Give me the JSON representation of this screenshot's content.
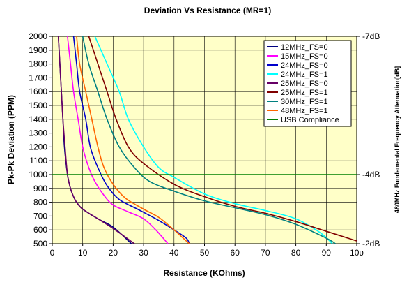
{
  "chart_data": {
    "type": "line",
    "title": "Deviation Vs Resistance (MR=1)",
    "xlabel": "Resistance (KOhms)",
    "ylabel": "Pk-Pk Deviation (PPM)",
    "y2label": "480MHz   Fundamental Frequency Attenuation[dB]",
    "xlim": [
      0,
      100
    ],
    "ylim": [
      500,
      2000
    ],
    "x_ticks": [
      "0",
      "10",
      "20",
      "30",
      "40",
      "50",
      "60",
      "70",
      "80",
      "90",
      "10υ"
    ],
    "y_ticks": [
      "500",
      "600",
      "700",
      "800",
      "900",
      "1000",
      "1100",
      "1200",
      "1300",
      "1400",
      "1500",
      "1600",
      "1700",
      "1800",
      "1900",
      "2000"
    ],
    "y2_ticks": [
      {
        "label": "-7dB",
        "y": 2000
      },
      {
        "label": "-4dB",
        "y": 1000
      },
      {
        "label": "-2dB",
        "y": 500
      }
    ],
    "grid": true,
    "legend_position": "top-right",
    "plot_background": "#FFFFC8",
    "series": [
      {
        "name": "12MHz_FS=0",
        "color": "#000080",
        "points": [
          [
            2,
            2000
          ],
          [
            2.5,
            1800
          ],
          [
            3,
            1600
          ],
          [
            3.5,
            1400
          ],
          [
            4,
            1200
          ],
          [
            5,
            1000
          ],
          [
            6,
            900
          ],
          [
            7,
            840
          ],
          [
            8,
            800
          ],
          [
            10,
            750
          ],
          [
            15,
            680
          ],
          [
            20,
            620
          ],
          [
            26,
            500
          ]
        ]
      },
      {
        "name": "15MHz_FS=0",
        "color": "#FF00FF",
        "points": [
          [
            5,
            2000
          ],
          [
            6,
            1800
          ],
          [
            7,
            1600
          ],
          [
            8.5,
            1400
          ],
          [
            10,
            1200
          ],
          [
            12,
            1050
          ],
          [
            14,
            950
          ],
          [
            17,
            850
          ],
          [
            20,
            780
          ],
          [
            25,
            730
          ],
          [
            30,
            680
          ],
          [
            34,
            600
          ],
          [
            38,
            500
          ]
        ]
      },
      {
        "name": "24MHz_FS=0",
        "color": "#0000CC",
        "points": [
          [
            7,
            2000
          ],
          [
            8,
            1800
          ],
          [
            9,
            1600
          ],
          [
            11,
            1400
          ],
          [
            12.5,
            1200
          ],
          [
            15,
            1050
          ],
          [
            18,
            920
          ],
          [
            22,
            820
          ],
          [
            28,
            750
          ],
          [
            34,
            680
          ],
          [
            40,
            600
          ],
          [
            44,
            540
          ],
          [
            45,
            500
          ]
        ]
      },
      {
        "name": "24MHz_FS=1",
        "color": "#00FFFF",
        "points": [
          [
            14,
            2000
          ],
          [
            18,
            1800
          ],
          [
            22,
            1600
          ],
          [
            25,
            1400
          ],
          [
            30,
            1200
          ],
          [
            35,
            1050
          ],
          [
            40,
            980
          ],
          [
            50,
            860
          ],
          [
            60,
            790
          ],
          [
            70,
            740
          ],
          [
            80,
            680
          ],
          [
            88,
            580
          ],
          [
            92,
            500
          ]
        ]
      },
      {
        "name": "25MHz_FS=0",
        "color": "#660066",
        "points": [
          [
            2,
            2000
          ],
          [
            2.5,
            1800
          ],
          [
            3,
            1600
          ],
          [
            3.5,
            1400
          ],
          [
            4.2,
            1200
          ],
          [
            5,
            1000
          ],
          [
            6,
            900
          ],
          [
            7,
            840
          ],
          [
            8,
            800
          ],
          [
            10,
            750
          ],
          [
            15,
            680
          ],
          [
            20,
            610
          ],
          [
            27,
            500
          ]
        ]
      },
      {
        "name": "25MHz_FS=1",
        "color": "#800000",
        "points": [
          [
            12,
            2000
          ],
          [
            15,
            1800
          ],
          [
            18,
            1600
          ],
          [
            21,
            1400
          ],
          [
            25,
            1200
          ],
          [
            30,
            1080
          ],
          [
            40,
            930
          ],
          [
            50,
            840
          ],
          [
            60,
            770
          ],
          [
            70,
            720
          ],
          [
            80,
            660
          ],
          [
            90,
            590
          ],
          [
            100,
            520
          ]
        ]
      },
      {
        "name": "30MHz_FS=1",
        "color": "#008080",
        "points": [
          [
            10,
            2000
          ],
          [
            12,
            1800
          ],
          [
            15,
            1600
          ],
          [
            18,
            1400
          ],
          [
            22,
            1200
          ],
          [
            27,
            1050
          ],
          [
            32,
            950
          ],
          [
            40,
            880
          ],
          [
            50,
            810
          ],
          [
            60,
            760
          ],
          [
            70,
            710
          ],
          [
            80,
            640
          ],
          [
            90,
            540
          ],
          [
            93,
            500
          ]
        ]
      },
      {
        "name": "48MHz_FS=1",
        "color": "#FF6600",
        "points": [
          [
            8,
            2000
          ],
          [
            9,
            1800
          ],
          [
            11,
            1600
          ],
          [
            13,
            1400
          ],
          [
            15,
            1200
          ],
          [
            17,
            1050
          ],
          [
            20,
            930
          ],
          [
            24,
            830
          ],
          [
            30,
            750
          ],
          [
            35,
            690
          ],
          [
            40,
            600
          ],
          [
            44,
            520
          ],
          [
            45,
            500
          ]
        ]
      },
      {
        "name": "USB Compliance",
        "color": "#008000",
        "points": [
          [
            0,
            1000
          ],
          [
            100,
            1000
          ]
        ]
      }
    ]
  }
}
